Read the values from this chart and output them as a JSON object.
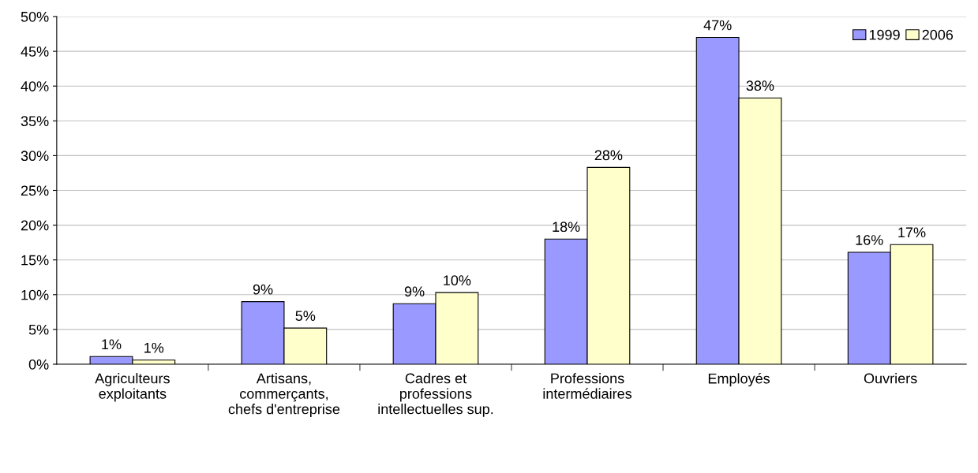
{
  "chart_data": {
    "type": "bar",
    "categories": [
      "Agriculteurs\nexploitants",
      "Artisans,\ncommerçants,\nchefs d'entreprise",
      "Cadres et\nprofessions\nintellectuelles sup.",
      "Professions\nintermédiaires",
      "Employés",
      "Ouvriers"
    ],
    "series": [
      {
        "name": "1999",
        "color": "#9999ff",
        "values": [
          1.1,
          9.0,
          8.7,
          18.0,
          47.0,
          16.1
        ],
        "value_labels": [
          "1%",
          "9%",
          "9%",
          "18%",
          "47%",
          "16%"
        ]
      },
      {
        "name": "2006",
        "color": "#ffffcc",
        "values": [
          0.6,
          5.2,
          10.3,
          28.3,
          38.3,
          17.2
        ],
        "value_labels": [
          "1%",
          "5%",
          "10%",
          "28%",
          "38%",
          "17%"
        ]
      }
    ],
    "ylim": [
      0,
      50
    ],
    "yticks": [
      {
        "value": 0,
        "label": "0%"
      },
      {
        "value": 5,
        "label": "5%"
      },
      {
        "value": 10,
        "label": "10%"
      },
      {
        "value": 15,
        "label": "15%"
      },
      {
        "value": 20,
        "label": "20%"
      },
      {
        "value": 25,
        "label": "25%"
      },
      {
        "value": 30,
        "label": "30%"
      },
      {
        "value": 35,
        "label": "35%"
      },
      {
        "value": 40,
        "label": "40%"
      },
      {
        "value": 45,
        "label": "45%"
      },
      {
        "value": 50,
        "label": "50%"
      }
    ],
    "grid": "y",
    "legend": "top right"
  }
}
